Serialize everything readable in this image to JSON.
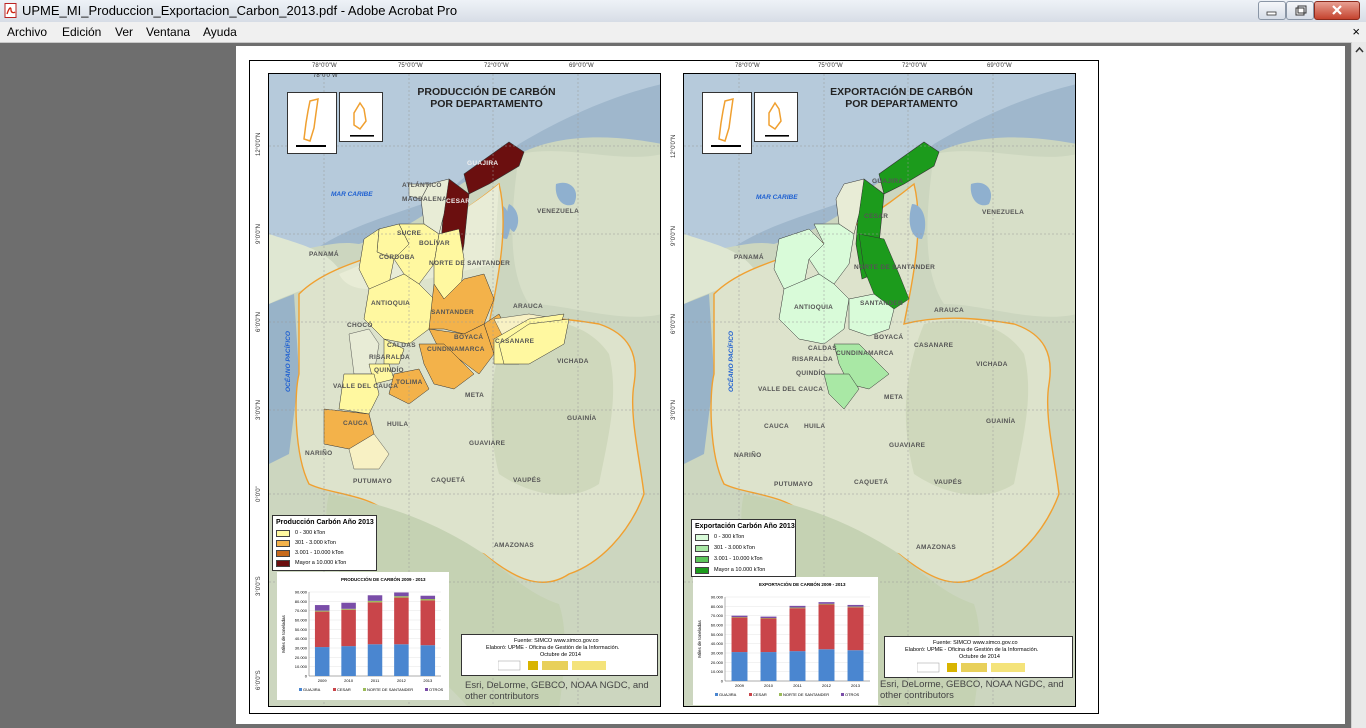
{
  "window": {
    "title": "UPME_MI_Produccion_Exportacion_Carbon_2013.pdf - Adobe Acrobat Pro",
    "controls": {
      "minimize": "minimize-icon",
      "restore": "restore-icon",
      "close": "close-icon"
    }
  },
  "menu": {
    "items": [
      "Archivo",
      "Edición",
      "Ver",
      "Ventana",
      "Ayuda"
    ],
    "close_symbol": "×"
  },
  "coords": {
    "lon": [
      "78°0'0\"W",
      "75°0'0\"W",
      "72°0'0\"W",
      "69°0'0\"W"
    ],
    "lat": [
      "12°0'0\"N",
      "9°0'0\"N",
      "6°0'0\"N",
      "3°0'0\"N",
      "0°0'0\"",
      "3°0'0\"S",
      "6°0'0\"S"
    ]
  },
  "departments": [
    "GUAJIRA",
    "CESAR",
    "MAGDALENA",
    "ATLÁNTICO",
    "SUCRE",
    "BOLÍVAR",
    "CÓRDOBA",
    "NORTE DE SANTANDER",
    "ANTIOQUIA",
    "SANTANDER",
    "CHOCÓ",
    "BOYACÁ",
    "CASANARE",
    "CALDAS",
    "CUNDINAMARCA",
    "RISARALDA",
    "QUINDÍO",
    "TOLIMA",
    "VALLE DEL CAUCA",
    "META",
    "CAUCA",
    "HUILA",
    "NARIÑO",
    "GUAVIARE",
    "PUTUMAYO",
    "CAQUETÁ",
    "VAUPÉS",
    "AMAZONAS",
    "ARAUCA",
    "VICHADA",
    "GUAINÍA"
  ],
  "water_labels": {
    "sea": "MAR CARIBE",
    "ocean": "OCÉANO PACÍFICO",
    "country": "VENEZUELA",
    "neighbor": "PANAMÁ"
  },
  "production": {
    "title_line1": "PRODUCCIÓN DE CARBÓN",
    "title_line2": "POR DEPARTAMENTO",
    "legend_title": "Producción Carbón Año 2013",
    "legend": [
      {
        "label": "0 - 300 kTon",
        "color": "#fff8a0"
      },
      {
        "label": "301 - 3.000 kTon",
        "color": "#f3b24a"
      },
      {
        "label": "3.001 - 10.000 kTon",
        "color": "#c76a1c"
      },
      {
        "label": "Mayor a 10.000 kTon",
        "color": "#6b0f0f"
      }
    ],
    "chart_title": "PRODUCCIÓN DE CARBÓN 2009 - 2013"
  },
  "export": {
    "title_line1": "EXPORTACIÓN DE CARBÓN",
    "title_line2": "POR DEPARTAMENTO",
    "legend_title": "Exportación Carbón Año 2013",
    "legend": [
      {
        "label": "0 - 300 kTon",
        "color": "#d9fbd9"
      },
      {
        "label": "301 - 3.000 kTon",
        "color": "#a9e8a5"
      },
      {
        "label": "3.001 - 10.000 kTon",
        "color": "#5cc55a"
      },
      {
        "label": "Mayor a 10.000 kTon",
        "color": "#1c9b1c"
      }
    ],
    "chart_title": "EXPORTACIÓN DE CARBÓN 2009 - 2013"
  },
  "chart_data": [
    {
      "type": "bar",
      "title": "PRODUCCIÓN DE CARBÓN 2009 - 2013",
      "ylabel": "Miles de toneladas",
      "categories": [
        "2009",
        "2010",
        "2011",
        "2012",
        "2013"
      ],
      "ylim": [
        0,
        90000
      ],
      "yticks": [
        "0",
        "10.000",
        "20.000",
        "30.000",
        "40.000",
        "50.000",
        "60.000",
        "70.000",
        "80.000",
        "90.000"
      ],
      "stacked": true,
      "series": [
        {
          "name": "GUAJIRA",
          "color": "#4a86d0",
          "values": [
            31000,
            32000,
            34000,
            34000,
            33000
          ]
        },
        {
          "name": "CESAR",
          "color": "#c9454a",
          "values": [
            38000,
            39000,
            45000,
            50000,
            48000
          ]
        },
        {
          "name": "NORTE DE SANTANDER",
          "color": "#9bbb59",
          "values": [
            1000,
            1000,
            1500,
            1500,
            1500
          ]
        },
        {
          "name": "OTROS",
          "color": "#7a4da8",
          "values": [
            6000,
            6500,
            6000,
            4000,
            3500
          ]
        }
      ]
    },
    {
      "type": "bar",
      "title": "EXPORTACIÓN DE CARBÓN 2009 - 2013",
      "ylabel": "Miles de toneladas",
      "categories": [
        "2009",
        "2010",
        "2011",
        "2012",
        "2013"
      ],
      "ylim": [
        0,
        90000
      ],
      "yticks": [
        "0",
        "10.000",
        "20.000",
        "30.000",
        "40.000",
        "50.000",
        "60.000",
        "70.000",
        "80.000",
        "90.000"
      ],
      "stacked": true,
      "series": [
        {
          "name": "GUAJIRA",
          "color": "#4a86d0",
          "values": [
            31000,
            31000,
            32000,
            34000,
            33000
          ]
        },
        {
          "name": "CESAR",
          "color": "#c9454a",
          "values": [
            37000,
            36000,
            46000,
            48000,
            46000
          ]
        },
        {
          "name": "NORTE DE SANTANDER",
          "color": "#9bbb59",
          "values": [
            500,
            500,
            700,
            700,
            700
          ]
        },
        {
          "name": "OTROS",
          "color": "#7a4da8",
          "values": [
            1500,
            1500,
            1800,
            1800,
            1800
          ]
        }
      ]
    }
  ],
  "credit": {
    "line1": "Fuente: SIMCO  www.simco.gov.co",
    "line2": "Elaboró:  UPME - Oficina de Gestión de la Información.",
    "line3": "Octubre de 2014"
  },
  "attribution": "Esri, DeLorme, GEBCO, NOAA NGDC, and other contributors"
}
